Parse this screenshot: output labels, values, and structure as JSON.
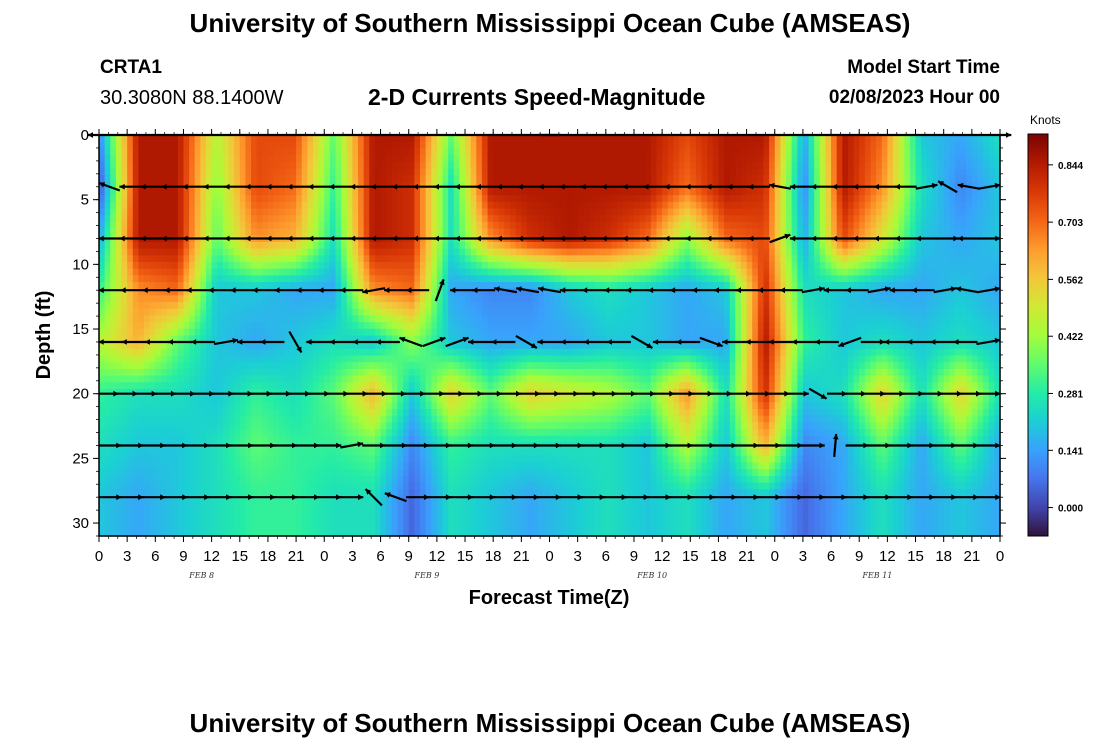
{
  "page": {
    "title": "University of Southern Mississippi Ocean Cube (AMSEAS)",
    "footer_title": "University of Southern Mississippi Ocean Cube (AMSEAS)",
    "station_id": "CRTA1",
    "station_coords": "30.3080N  88.1400W",
    "subtitle": "2-D Currents Speed-Magnitude",
    "model_start_label": "Model Start Time",
    "model_start_value": "02/08/2023 Hour 00"
  },
  "colors": {
    "scale": [
      "#30123b",
      "#4145ab",
      "#4675ed",
      "#39a2fc",
      "#1bcfd4",
      "#24eca6",
      "#61fc6c",
      "#a4fc3b",
      "#d1e834",
      "#f3c63a",
      "#fe9b2d",
      "#f36315",
      "#d93806",
      "#b11901",
      "#7a0403"
    ],
    "arrow": "#000000"
  },
  "chart_data": {
    "type": "heatmap",
    "title": "2-D Currents Speed-Magnitude",
    "xlabel": "Forecast Time(Z)",
    "ylabel": "Depth (ft)",
    "x_range_hours": [
      0,
      96
    ],
    "y_range_ft": [
      0,
      31
    ],
    "y_ticks": [
      "0",
      "5",
      "10",
      "15",
      "20",
      "25",
      "30"
    ],
    "y_tick_values": [
      0,
      5,
      10,
      15,
      20,
      25,
      30
    ],
    "x_ticks": [
      "0",
      "3",
      "6",
      "9",
      "12",
      "15",
      "18",
      "21",
      "0",
      "3",
      "6",
      "9",
      "12",
      "15",
      "18",
      "21",
      "0",
      "3",
      "6",
      "9",
      "12",
      "15",
      "18",
      "21",
      "0",
      "3",
      "6",
      "9",
      "12",
      "15",
      "18",
      "21",
      "0"
    ],
    "day_labels": [
      "FEB 8",
      "FEB 9",
      "FEB 10",
      "FEB 11"
    ],
    "colorbar": {
      "label": "Knots",
      "ticks": [
        "0.844",
        "0.703",
        "0.562",
        "0.422",
        "0.281",
        "0.141",
        "0.000"
      ],
      "tick_values": [
        0.844,
        0.703,
        0.562,
        0.422,
        0.281,
        0.141,
        0.0
      ],
      "range": [
        -0.07,
        0.92
      ]
    },
    "depth_levels_ft": [
      0,
      4,
      8,
      12,
      16,
      20,
      24,
      28
    ],
    "speed_knots": [
      [
        0.1,
        0.85,
        0.85,
        0.45,
        0.75,
        0.75,
        0.35,
        0.85,
        0.85,
        0.35,
        0.85,
        0.85,
        0.85,
        0.85,
        0.85,
        0.75,
        0.85,
        0.85,
        0.15,
        0.85,
        0.7,
        0.2,
        0.15,
        0.25
      ],
      [
        0.0,
        0.85,
        0.85,
        0.4,
        0.75,
        0.7,
        0.3,
        0.85,
        0.8,
        0.25,
        0.85,
        0.85,
        0.85,
        0.85,
        0.85,
        0.7,
        0.85,
        0.8,
        0.1,
        0.85,
        0.65,
        0.25,
        0.1,
        0.2
      ],
      [
        0.15,
        0.85,
        0.85,
        0.35,
        0.65,
        0.6,
        0.25,
        0.85,
        0.8,
        0.25,
        0.65,
        0.8,
        0.85,
        0.8,
        0.7,
        0.4,
        0.7,
        0.75,
        0.15,
        0.75,
        0.5,
        0.2,
        0.15,
        0.2
      ],
      [
        0.3,
        0.65,
        0.7,
        0.2,
        0.2,
        0.15,
        0.15,
        0.65,
        0.7,
        0.15,
        0.1,
        0.1,
        0.2,
        0.25,
        0.2,
        0.15,
        0.2,
        0.8,
        0.25,
        0.2,
        0.15,
        0.15,
        0.2,
        0.15
      ],
      [
        0.45,
        0.6,
        0.35,
        0.2,
        0.15,
        0.2,
        0.25,
        0.2,
        0.4,
        0.2,
        0.15,
        0.15,
        0.15,
        0.2,
        0.2,
        0.15,
        0.15,
        0.85,
        0.3,
        0.2,
        0.25,
        0.2,
        0.25,
        0.2
      ],
      [
        0.3,
        0.25,
        0.25,
        0.2,
        0.3,
        0.25,
        0.35,
        0.6,
        0.2,
        0.55,
        0.35,
        0.55,
        0.5,
        0.45,
        0.35,
        0.65,
        0.25,
        0.8,
        0.2,
        0.25,
        0.55,
        0.25,
        0.55,
        0.25
      ],
      [
        0.25,
        0.2,
        0.2,
        0.25,
        0.35,
        0.3,
        0.3,
        0.35,
        0.1,
        0.3,
        0.25,
        0.25,
        0.25,
        0.25,
        0.2,
        0.45,
        0.2,
        0.6,
        0.1,
        0.15,
        0.35,
        0.15,
        0.35,
        0.15
      ],
      [
        0.2,
        0.15,
        0.2,
        0.25,
        0.3,
        0.3,
        0.25,
        0.25,
        0.05,
        0.25,
        0.2,
        0.15,
        0.2,
        0.25,
        0.2,
        0.25,
        0.15,
        0.2,
        0.05,
        0.15,
        0.25,
        0.15,
        0.2,
        0.15
      ]
    ],
    "arrow_rows": [
      {
        "depth_ft": 0,
        "angles_deg": [
          180,
          0
        ]
      },
      {
        "depth_ft": 4,
        "angles_deg": [
          160,
          180,
          180,
          180,
          180,
          180,
          180,
          180,
          180,
          180,
          180,
          180,
          180,
          180,
          180,
          180,
          180,
          180,
          180,
          180,
          180,
          180,
          180,
          180,
          180,
          180,
          180,
          180,
          180,
          180,
          180,
          180,
          170,
          180,
          180,
          180,
          180,
          180,
          180,
          10,
          150,
          170,
          10
        ]
      },
      {
        "depth_ft": 8,
        "angles_deg": [
          180,
          180,
          180,
          180,
          180,
          180,
          180,
          180,
          180,
          180,
          180,
          180,
          180,
          180,
          180,
          180,
          180,
          180,
          180,
          180,
          180,
          180,
          180,
          180,
          180,
          180,
          180,
          180,
          180,
          180,
          180,
          180,
          20,
          180,
          180,
          180,
          180,
          180,
          180,
          180,
          0,
          180,
          0
        ]
      },
      {
        "depth_ft": 12,
        "angles_deg": [
          180,
          180,
          180,
          180,
          180,
          180,
          180,
          180,
          180,
          180,
          180,
          180,
          190,
          180,
          180,
          70,
          180,
          180,
          170,
          170,
          170,
          180,
          180,
          180,
          180,
          180,
          180,
          180,
          180,
          180,
          180,
          180,
          10,
          180,
          180,
          10,
          180,
          180,
          10,
          170,
          10
        ]
      },
      {
        "depth_ft": 16,
        "angles_deg": [
          180,
          180,
          180,
          180,
          180,
          10,
          180,
          180,
          300,
          180,
          180,
          180,
          180,
          160,
          20,
          20,
          180,
          180,
          330,
          180,
          180,
          180,
          180,
          330,
          180,
          180,
          340,
          180,
          180,
          180,
          180,
          180,
          200,
          0,
          180,
          180,
          180,
          180,
          10
        ]
      },
      {
        "depth_ft": 20,
        "angles_deg": [
          0,
          0,
          0,
          0,
          0,
          0,
          0,
          0,
          0,
          0,
          0,
          0,
          0,
          0,
          0,
          0,
          0,
          0,
          0,
          0,
          0,
          0,
          0,
          0,
          0,
          0,
          0,
          0,
          0,
          0,
          0,
          0,
          0,
          0,
          0,
          0,
          0,
          330,
          0,
          0,
          0,
          0,
          0,
          0,
          0,
          0,
          0
        ]
      },
      {
        "depth_ft": 24,
        "angles_deg": [
          0,
          0,
          0,
          0,
          0,
          0,
          0,
          0,
          0,
          0,
          0,
          10,
          0,
          0,
          0,
          0,
          0,
          0,
          0,
          0,
          0,
          0,
          0,
          0,
          0,
          0,
          0,
          0,
          0,
          0,
          0,
          0,
          0,
          85,
          0,
          0,
          0,
          0,
          0,
          0,
          0
        ]
      },
      {
        "depth_ft": 28,
        "angles_deg": [
          0,
          0,
          0,
          0,
          0,
          0,
          0,
          0,
          0,
          0,
          0,
          0,
          135,
          160,
          0,
          0,
          0,
          0,
          0,
          0,
          0,
          0,
          0,
          0,
          0,
          0,
          0,
          0,
          0,
          0,
          0,
          0,
          0,
          0,
          0,
          0,
          0,
          0,
          0,
          0,
          0
        ]
      }
    ]
  }
}
